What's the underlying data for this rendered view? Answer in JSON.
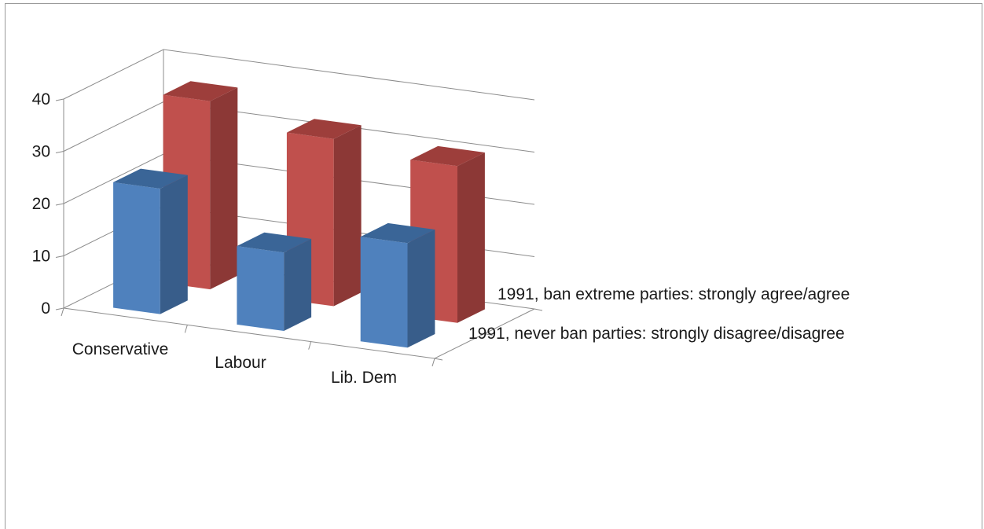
{
  "chart_data": {
    "type": "bar",
    "subtype": "3d-column",
    "title": "",
    "xlabel": "",
    "ylabel": "",
    "categories": [
      "Conservative",
      "Labour",
      "Lib. Dem"
    ],
    "ylim": [
      0,
      40
    ],
    "yticks": [
      0,
      10,
      20,
      30,
      40
    ],
    "grid": true,
    "legend": "none",
    "series": [
      {
        "name": "1991, never ban parties: strongly disagree/disagree",
        "values": [
          24,
          15,
          20
        ],
        "color": "#4F81BD",
        "side_color": "#385D8A",
        "top_color": "#3A6597"
      },
      {
        "name": "1991, ban extreme parties: strongly agree/agree",
        "values": [
          36,
          32,
          30
        ],
        "color": "#C0504D",
        "side_color": "#8C3836",
        "top_color": "#9D3E3B"
      }
    ]
  }
}
